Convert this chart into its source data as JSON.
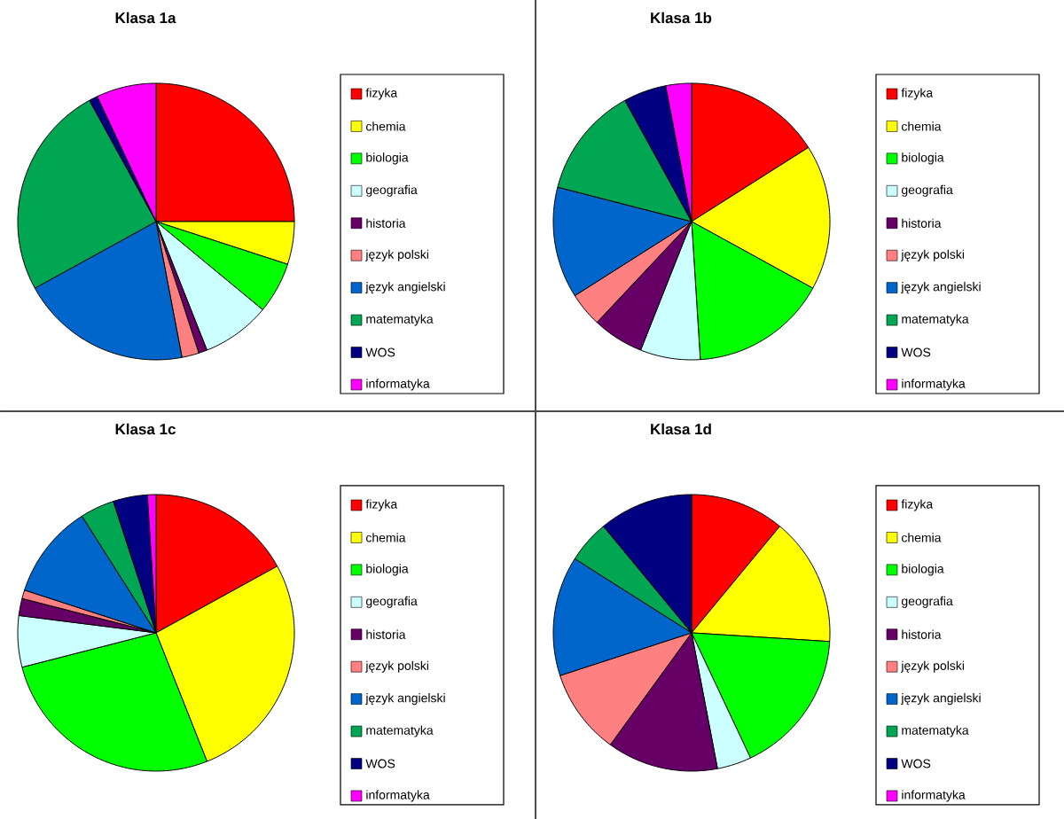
{
  "chart_data": [
    {
      "type": "pie",
      "title": "Klasa 1a",
      "categories": [
        "fizyka",
        "chemia",
        "biologia",
        "geografia",
        "historia",
        "język polski",
        "język angielski",
        "matematyka",
        "WOS",
        "informatyka"
      ],
      "values": [
        25,
        5,
        6,
        8,
        1,
        2,
        20,
        25,
        1,
        7
      ],
      "colors": [
        "#ff0000",
        "#ffff00",
        "#00ff00",
        "#ccffff",
        "#660066",
        "#ff8080",
        "#0066cc",
        "#00a651",
        "#000080",
        "#ff00ff"
      ],
      "legend": "right"
    },
    {
      "type": "pie",
      "title": "Klasa 1b",
      "categories": [
        "fizyka",
        "chemia",
        "biologia",
        "geografia",
        "historia",
        "język polski",
        "język angielski",
        "matematyka",
        "WOS",
        "informatyka"
      ],
      "values": [
        16,
        17,
        16,
        7,
        6,
        4,
        13,
        13,
        5,
        3
      ],
      "colors": [
        "#ff0000",
        "#ffff00",
        "#00ff00",
        "#ccffff",
        "#660066",
        "#ff8080",
        "#0066cc",
        "#00a651",
        "#000080",
        "#ff00ff"
      ],
      "legend": "right"
    },
    {
      "type": "pie",
      "title": "Klasa 1c",
      "categories": [
        "fizyka",
        "chemia",
        "biologia",
        "geografia",
        "historia",
        "język polski",
        "język angielski",
        "matematyka",
        "WOS",
        "informatyka"
      ],
      "values": [
        17,
        27,
        27,
        6,
        2,
        1,
        11,
        4,
        4,
        1
      ],
      "colors": [
        "#ff0000",
        "#ffff00",
        "#00ff00",
        "#ccffff",
        "#660066",
        "#ff8080",
        "#0066cc",
        "#00a651",
        "#000080",
        "#ff00ff"
      ],
      "legend": "right"
    },
    {
      "type": "pie",
      "title": "Klasa 1d",
      "categories": [
        "fizyka",
        "chemia",
        "biologia",
        "geografia",
        "historia",
        "język polski",
        "język angielski",
        "matematyka",
        "WOS",
        "informatyka"
      ],
      "values": [
        11,
        15,
        17,
        4,
        13,
        10,
        14,
        5,
        11,
        0
      ],
      "colors": [
        "#ff0000",
        "#ffff00",
        "#00ff00",
        "#ccffff",
        "#660066",
        "#ff8080",
        "#0066cc",
        "#00a651",
        "#000080",
        "#ff00ff"
      ],
      "legend": "right"
    }
  ]
}
